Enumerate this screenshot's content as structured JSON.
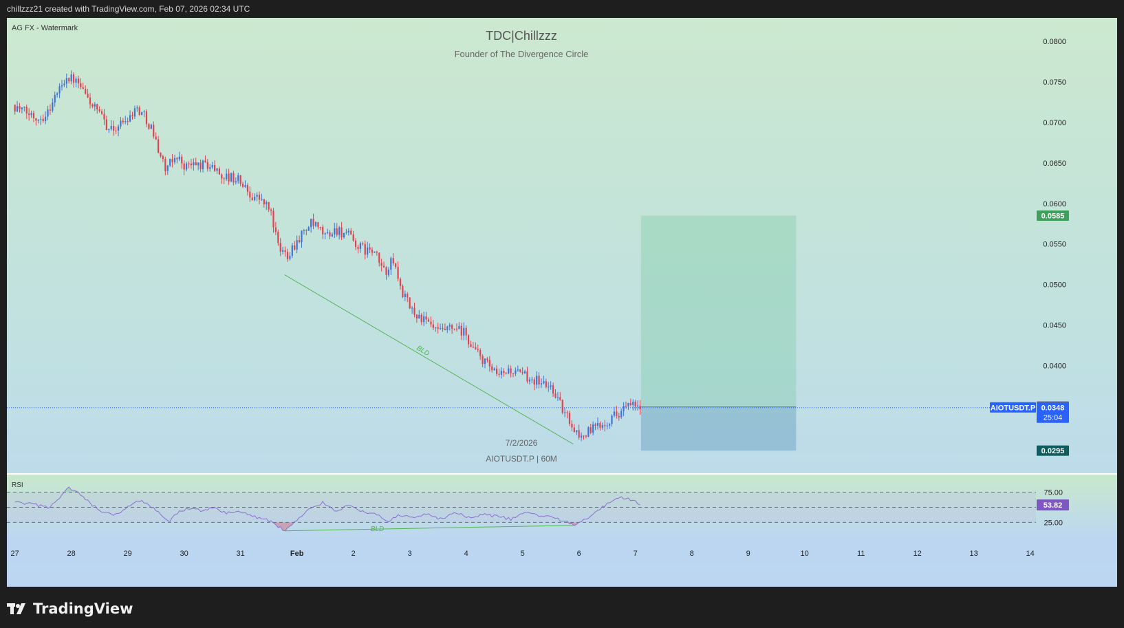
{
  "header": {
    "credit": "chillzzz21 created with TradingView.com, Feb 07, 2026 02:34 UTC"
  },
  "watermark": {
    "label": "AG FX - Watermark",
    "title": "TDC|Chillzzz",
    "subtitle": "Founder of The Divergence Circle",
    "date": "7/2/2026",
    "symbol_line": "AIOTUSDT.P | 60M"
  },
  "footer": {
    "brand": "TradingView",
    "logo_icon": "tradingview-logo-icon"
  },
  "colors": {
    "up": "#3f73d9",
    "down": "#e0424f",
    "target": "#3ea05a",
    "stop": "#0c5d5f",
    "price": "#2962ff",
    "rsi": "#8b6fd1",
    "divergence": "#53b553",
    "last": "#6d6d6d"
  },
  "chart_data": [
    {
      "type": "candlestick",
      "symbol": "AIOTUSDT.P",
      "interval": "60M",
      "y_axis": {
        "ticks": [
          "0.0800",
          "0.0750",
          "0.0700",
          "0.0650",
          "0.0600",
          "0.0550",
          "0.0500",
          "0.0450",
          "0.0400"
        ],
        "range": [
          0.0265,
          0.0815
        ]
      },
      "x_axis": {
        "ticks": [
          "27",
          "28",
          "29",
          "30",
          "31",
          "Feb",
          "2",
          "3",
          "4",
          "5",
          "6",
          "7",
          "8",
          "9",
          "10",
          "11",
          "12",
          "13",
          "14"
        ],
        "range_days": [
          -0.13,
          18.1
        ]
      },
      "path": [
        [
          0,
          0.0722
        ],
        [
          0.2,
          0.0713
        ],
        [
          0.45,
          0.0706
        ],
        [
          0.6,
          0.071
        ],
        [
          0.8,
          0.0738
        ],
        [
          0.95,
          0.0757
        ],
        [
          1.1,
          0.0752
        ],
        [
          1.35,
          0.0728
        ],
        [
          1.55,
          0.0708
        ],
        [
          1.75,
          0.069
        ],
        [
          1.95,
          0.07
        ],
        [
          2.2,
          0.0718
        ],
        [
          2.32,
          0.071
        ],
        [
          2.45,
          0.0695
        ],
        [
          2.6,
          0.0665
        ],
        [
          2.72,
          0.064
        ],
        [
          2.9,
          0.066
        ],
        [
          3.05,
          0.0646
        ],
        [
          3.3,
          0.0648
        ],
        [
          3.5,
          0.0647
        ],
        [
          3.75,
          0.0633
        ],
        [
          4.0,
          0.063
        ],
        [
          4.2,
          0.0612
        ],
        [
          4.4,
          0.0605
        ],
        [
          4.58,
          0.059
        ],
        [
          4.72,
          0.0542
        ],
        [
          4.88,
          0.0538
        ],
        [
          5.1,
          0.056
        ],
        [
          5.3,
          0.0575
        ],
        [
          5.55,
          0.056
        ],
        [
          5.75,
          0.0568
        ],
        [
          5.95,
          0.056
        ],
        [
          6.15,
          0.0545
        ],
        [
          6.4,
          0.054
        ],
        [
          6.6,
          0.0515
        ],
        [
          6.75,
          0.053
        ],
        [
          6.88,
          0.0495
        ],
        [
          7.05,
          0.047
        ],
        [
          7.3,
          0.0455
        ],
        [
          7.55,
          0.044
        ],
        [
          7.8,
          0.0445
        ],
        [
          8.0,
          0.044
        ],
        [
          8.2,
          0.0418
        ],
        [
          8.45,
          0.0398
        ],
        [
          8.6,
          0.0385
        ],
        [
          8.8,
          0.0395
        ],
        [
          9.0,
          0.0388
        ],
        [
          9.2,
          0.0385
        ],
        [
          9.4,
          0.0378
        ],
        [
          9.6,
          0.037
        ],
        [
          9.75,
          0.0345
        ],
        [
          9.9,
          0.033
        ],
        [
          10.05,
          0.0312
        ],
        [
          10.25,
          0.032
        ],
        [
          10.55,
          0.0333
        ],
        [
          10.75,
          0.0343
        ],
        [
          10.9,
          0.035
        ],
        [
          11.1,
          0.0348
        ]
      ],
      "last_price": "0.0349",
      "current_price": "0.0348",
      "countdown": "25:04",
      "price_label": "AIOTUSDT.P",
      "position": {
        "type": "long",
        "entry": 0.0349,
        "target": 0.0585,
        "stop": 0.0295,
        "target_label": "0.0585",
        "stop_label": "0.0295",
        "from_day": 11.1,
        "to_day": 13.85
      },
      "divergence": {
        "label": "BLD",
        "points": [
          [
            4.78,
            0.0512
          ],
          [
            9.9,
            0.0303
          ]
        ]
      }
    },
    {
      "type": "line",
      "name": "RSI",
      "y_axis": {
        "ticks": [
          "75.00",
          "25.00"
        ],
        "range": [
          -3,
          103
        ]
      },
      "levels": [
        75,
        50,
        25
      ],
      "last_value": "53.82",
      "path": [
        [
          0,
          58
        ],
        [
          0.3,
          55
        ],
        [
          0.6,
          50
        ],
        [
          0.8,
          65
        ],
        [
          0.95,
          82
        ],
        [
          1.1,
          75
        ],
        [
          1.35,
          55
        ],
        [
          1.55,
          42
        ],
        [
          1.75,
          36
        ],
        [
          1.95,
          46
        ],
        [
          2.15,
          62
        ],
        [
          2.35,
          56
        ],
        [
          2.55,
          40
        ],
        [
          2.72,
          25
        ],
        [
          2.9,
          42
        ],
        [
          3.1,
          48
        ],
        [
          3.3,
          45
        ],
        [
          3.5,
          49
        ],
        [
          3.75,
          40
        ],
        [
          4.0,
          44
        ],
        [
          4.2,
          35
        ],
        [
          4.45,
          30
        ],
        [
          4.6,
          23
        ],
        [
          4.78,
          11
        ],
        [
          4.95,
          24
        ],
        [
          5.2,
          45
        ],
        [
          5.45,
          58
        ],
        [
          5.7,
          44
        ],
        [
          5.95,
          55
        ],
        [
          6.15,
          42
        ],
        [
          6.4,
          40
        ],
        [
          6.6,
          26
        ],
        [
          6.8,
          36
        ],
        [
          7.05,
          33
        ],
        [
          7.3,
          38
        ],
        [
          7.55,
          30
        ],
        [
          7.8,
          42
        ],
        [
          8.05,
          32
        ],
        [
          8.3,
          38
        ],
        [
          8.55,
          35
        ],
        [
          8.8,
          30
        ],
        [
          9.05,
          42
        ],
        [
          9.3,
          36
        ],
        [
          9.55,
          34
        ],
        [
          9.75,
          26
        ],
        [
          9.9,
          21
        ],
        [
          10.1,
          30
        ],
        [
          10.35,
          45
        ],
        [
          10.6,
          63
        ],
        [
          10.8,
          66
        ],
        [
          11.0,
          60
        ],
        [
          11.1,
          54
        ]
      ],
      "divergence": {
        "label": "BLD",
        "points": [
          [
            4.78,
            11
          ],
          [
            9.9,
            20
          ]
        ]
      }
    }
  ]
}
